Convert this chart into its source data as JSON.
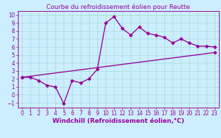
{
  "title": "Courbe du refroidissement éolien pour Reutte",
  "xlabel": "Windchill (Refroidissement éolien,°C)",
  "xlim": [
    -0.5,
    23.5
  ],
  "ylim": [
    -1.6,
    10.5
  ],
  "xticks": [
    0,
    1,
    2,
    3,
    4,
    5,
    6,
    7,
    8,
    9,
    10,
    11,
    12,
    13,
    14,
    15,
    16,
    17,
    18,
    19,
    20,
    21,
    22,
    23
  ],
  "yticks": [
    -1,
    0,
    1,
    2,
    3,
    4,
    5,
    6,
    7,
    8,
    9,
    10
  ],
  "bg_color": "#cceeff",
  "line_color": "#990099",
  "grid_color": "#aadddd",
  "curve_x": [
    0,
    1,
    2,
    3,
    4,
    5,
    6,
    7,
    8,
    9,
    10,
    11,
    12,
    13,
    14,
    15,
    16,
    17,
    18,
    19,
    20,
    21,
    22,
    23
  ],
  "curve_y": [
    2.2,
    2.2,
    1.8,
    1.2,
    1.0,
    -1.1,
    1.8,
    1.5,
    2.0,
    3.2,
    9.0,
    9.8,
    8.3,
    7.5,
    8.5,
    7.7,
    7.5,
    7.2,
    6.5,
    7.0,
    6.5,
    6.1,
    6.1,
    6.0
  ],
  "line2_x": [
    0,
    23
  ],
  "line2_y": [
    2.2,
    5.3
  ],
  "marker": "D",
  "markersize": 2.5,
  "linewidth": 1.0,
  "title_fontsize": 6.5,
  "xlabel_fontsize": 6.5,
  "tick_fontsize": 5.5
}
